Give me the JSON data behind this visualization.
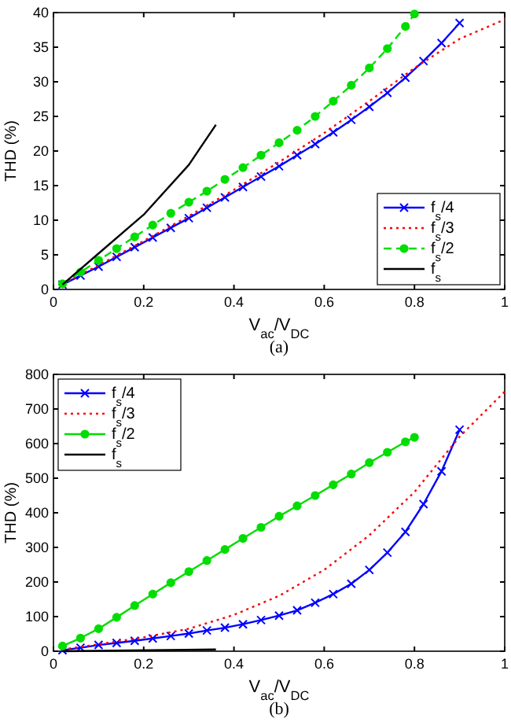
{
  "chart_data": [
    {
      "type": "line",
      "xlabel": "V$_{ac}$/V$_{DC}$",
      "ylabel": "THD (%)",
      "xlim": [
        0,
        1
      ],
      "xticks": [
        0,
        0.2,
        0.4,
        0.6,
        0.8,
        1
      ],
      "ylim": [
        0,
        40
      ],
      "yticks": [
        0,
        5,
        10,
        15,
        20,
        25,
        30,
        35,
        40
      ],
      "grid": false,
      "legend": "bottom right",
      "annotations": [
        "(a)"
      ],
      "series": [
        {
          "name": "f$_{s}$/4",
          "color": "#0000ff",
          "marker": "cross",
          "line_style": "solid",
          "x": [
            0.02,
            0.06,
            0.1,
            0.14,
            0.18,
            0.22,
            0.26,
            0.3,
            0.34,
            0.38,
            0.42,
            0.46,
            0.5,
            0.54,
            0.58,
            0.62,
            0.66,
            0.7,
            0.74,
            0.78,
            0.82,
            0.86,
            0.9
          ],
          "values": [
            0.7,
            2,
            3.3,
            4.7,
            6.1,
            7.5,
            8.9,
            10.3,
            11.8,
            13.3,
            14.8,
            16.3,
            17.8,
            19.4,
            21,
            22.7,
            24.5,
            26.4,
            28.4,
            30.6,
            33,
            35.6,
            38.5
          ]
        },
        {
          "name": "f$_{s}$/3",
          "color": "#ff0000",
          "marker": "none",
          "line_style": "dotted",
          "x": [
            0.02,
            0.1,
            0.2,
            0.3,
            0.4,
            0.5,
            0.6,
            0.7,
            0.8,
            0.9,
            1
          ],
          "values": [
            0.8,
            3.5,
            7,
            10.6,
            14.4,
            18.4,
            22.6,
            27.2,
            32,
            36.2,
            39
          ]
        },
        {
          "name": "f$_{s}$/2",
          "color": "#00dd00",
          "marker": "circle",
          "line_style": "dashed",
          "x": [
            0.02,
            0.06,
            0.1,
            0.14,
            0.18,
            0.22,
            0.26,
            0.3,
            0.34,
            0.38,
            0.42,
            0.46,
            0.5,
            0.54,
            0.58,
            0.62,
            0.66,
            0.7,
            0.74,
            0.78,
            0.8
          ],
          "values": [
            0.8,
            2.5,
            4.2,
            5.9,
            7.6,
            9.3,
            11,
            12.6,
            14.2,
            15.9,
            17.6,
            19.4,
            21.2,
            23,
            25,
            27.2,
            29.5,
            32,
            34.8,
            38,
            39.8
          ]
        },
        {
          "name": "f$_{s}$",
          "color": "#000000",
          "marker": "none",
          "line_style": "solid",
          "x": [
            0.02,
            0.1,
            0.2,
            0.3,
            0.36
          ],
          "values": [
            0.7,
            5.2,
            10.8,
            18,
            23.8
          ]
        }
      ]
    },
    {
      "type": "line",
      "xlabel": "V$_{ac}$/V$_{DC}$",
      "ylabel": "THD (%)",
      "xlim": [
        0,
        1
      ],
      "xticks": [
        0,
        0.2,
        0.4,
        0.6,
        0.8,
        1
      ],
      "ylim": [
        0,
        800
      ],
      "yticks": [
        0,
        100,
        200,
        300,
        400,
        500,
        600,
        700,
        800
      ],
      "grid": false,
      "legend": "top left",
      "annotations": [
        "(b)"
      ],
      "series": [
        {
          "name": "f$_{s}$/4",
          "color": "#0000ff",
          "marker": "cross",
          "line_style": "solid",
          "x": [
            0.02,
            0.06,
            0.1,
            0.14,
            0.18,
            0.22,
            0.26,
            0.3,
            0.34,
            0.38,
            0.42,
            0.46,
            0.5,
            0.54,
            0.58,
            0.62,
            0.66,
            0.7,
            0.74,
            0.78,
            0.82,
            0.86,
            0.9
          ],
          "values": [
            3,
            10,
            18,
            24,
            30,
            37,
            44,
            51,
            60,
            68,
            78,
            90,
            103,
            118,
            140,
            165,
            195,
            235,
            285,
            345,
            425,
            520,
            640
          ]
        },
        {
          "name": "f$_{s}$/3",
          "color": "#ff0000",
          "marker": "none",
          "line_style": "dotted",
          "x": [
            0.02,
            0.1,
            0.2,
            0.3,
            0.4,
            0.5,
            0.6,
            0.7,
            0.8,
            0.9,
            1
          ],
          "values": [
            5,
            20,
            40,
            65,
            105,
            160,
            235,
            335,
            460,
            620,
            750
          ]
        },
        {
          "name": "f$_{s}$/2",
          "color": "#00dd00",
          "marker": "circle",
          "line_style": "solid",
          "x": [
            0.02,
            0.06,
            0.1,
            0.14,
            0.18,
            0.22,
            0.26,
            0.3,
            0.34,
            0.38,
            0.42,
            0.46,
            0.5,
            0.54,
            0.58,
            0.62,
            0.66,
            0.7,
            0.74,
            0.78,
            0.8
          ],
          "values": [
            15,
            38,
            65,
            98,
            132,
            165,
            198,
            230,
            262,
            294,
            326,
            358,
            390,
            420,
            450,
            481,
            512,
            545,
            575,
            605,
            618
          ]
        },
        {
          "name": "f$_{s}$",
          "color": "#000000",
          "marker": "none",
          "line_style": "solid",
          "x": [
            0.02,
            0.36
          ],
          "values": [
            0,
            5
          ]
        }
      ]
    }
  ]
}
